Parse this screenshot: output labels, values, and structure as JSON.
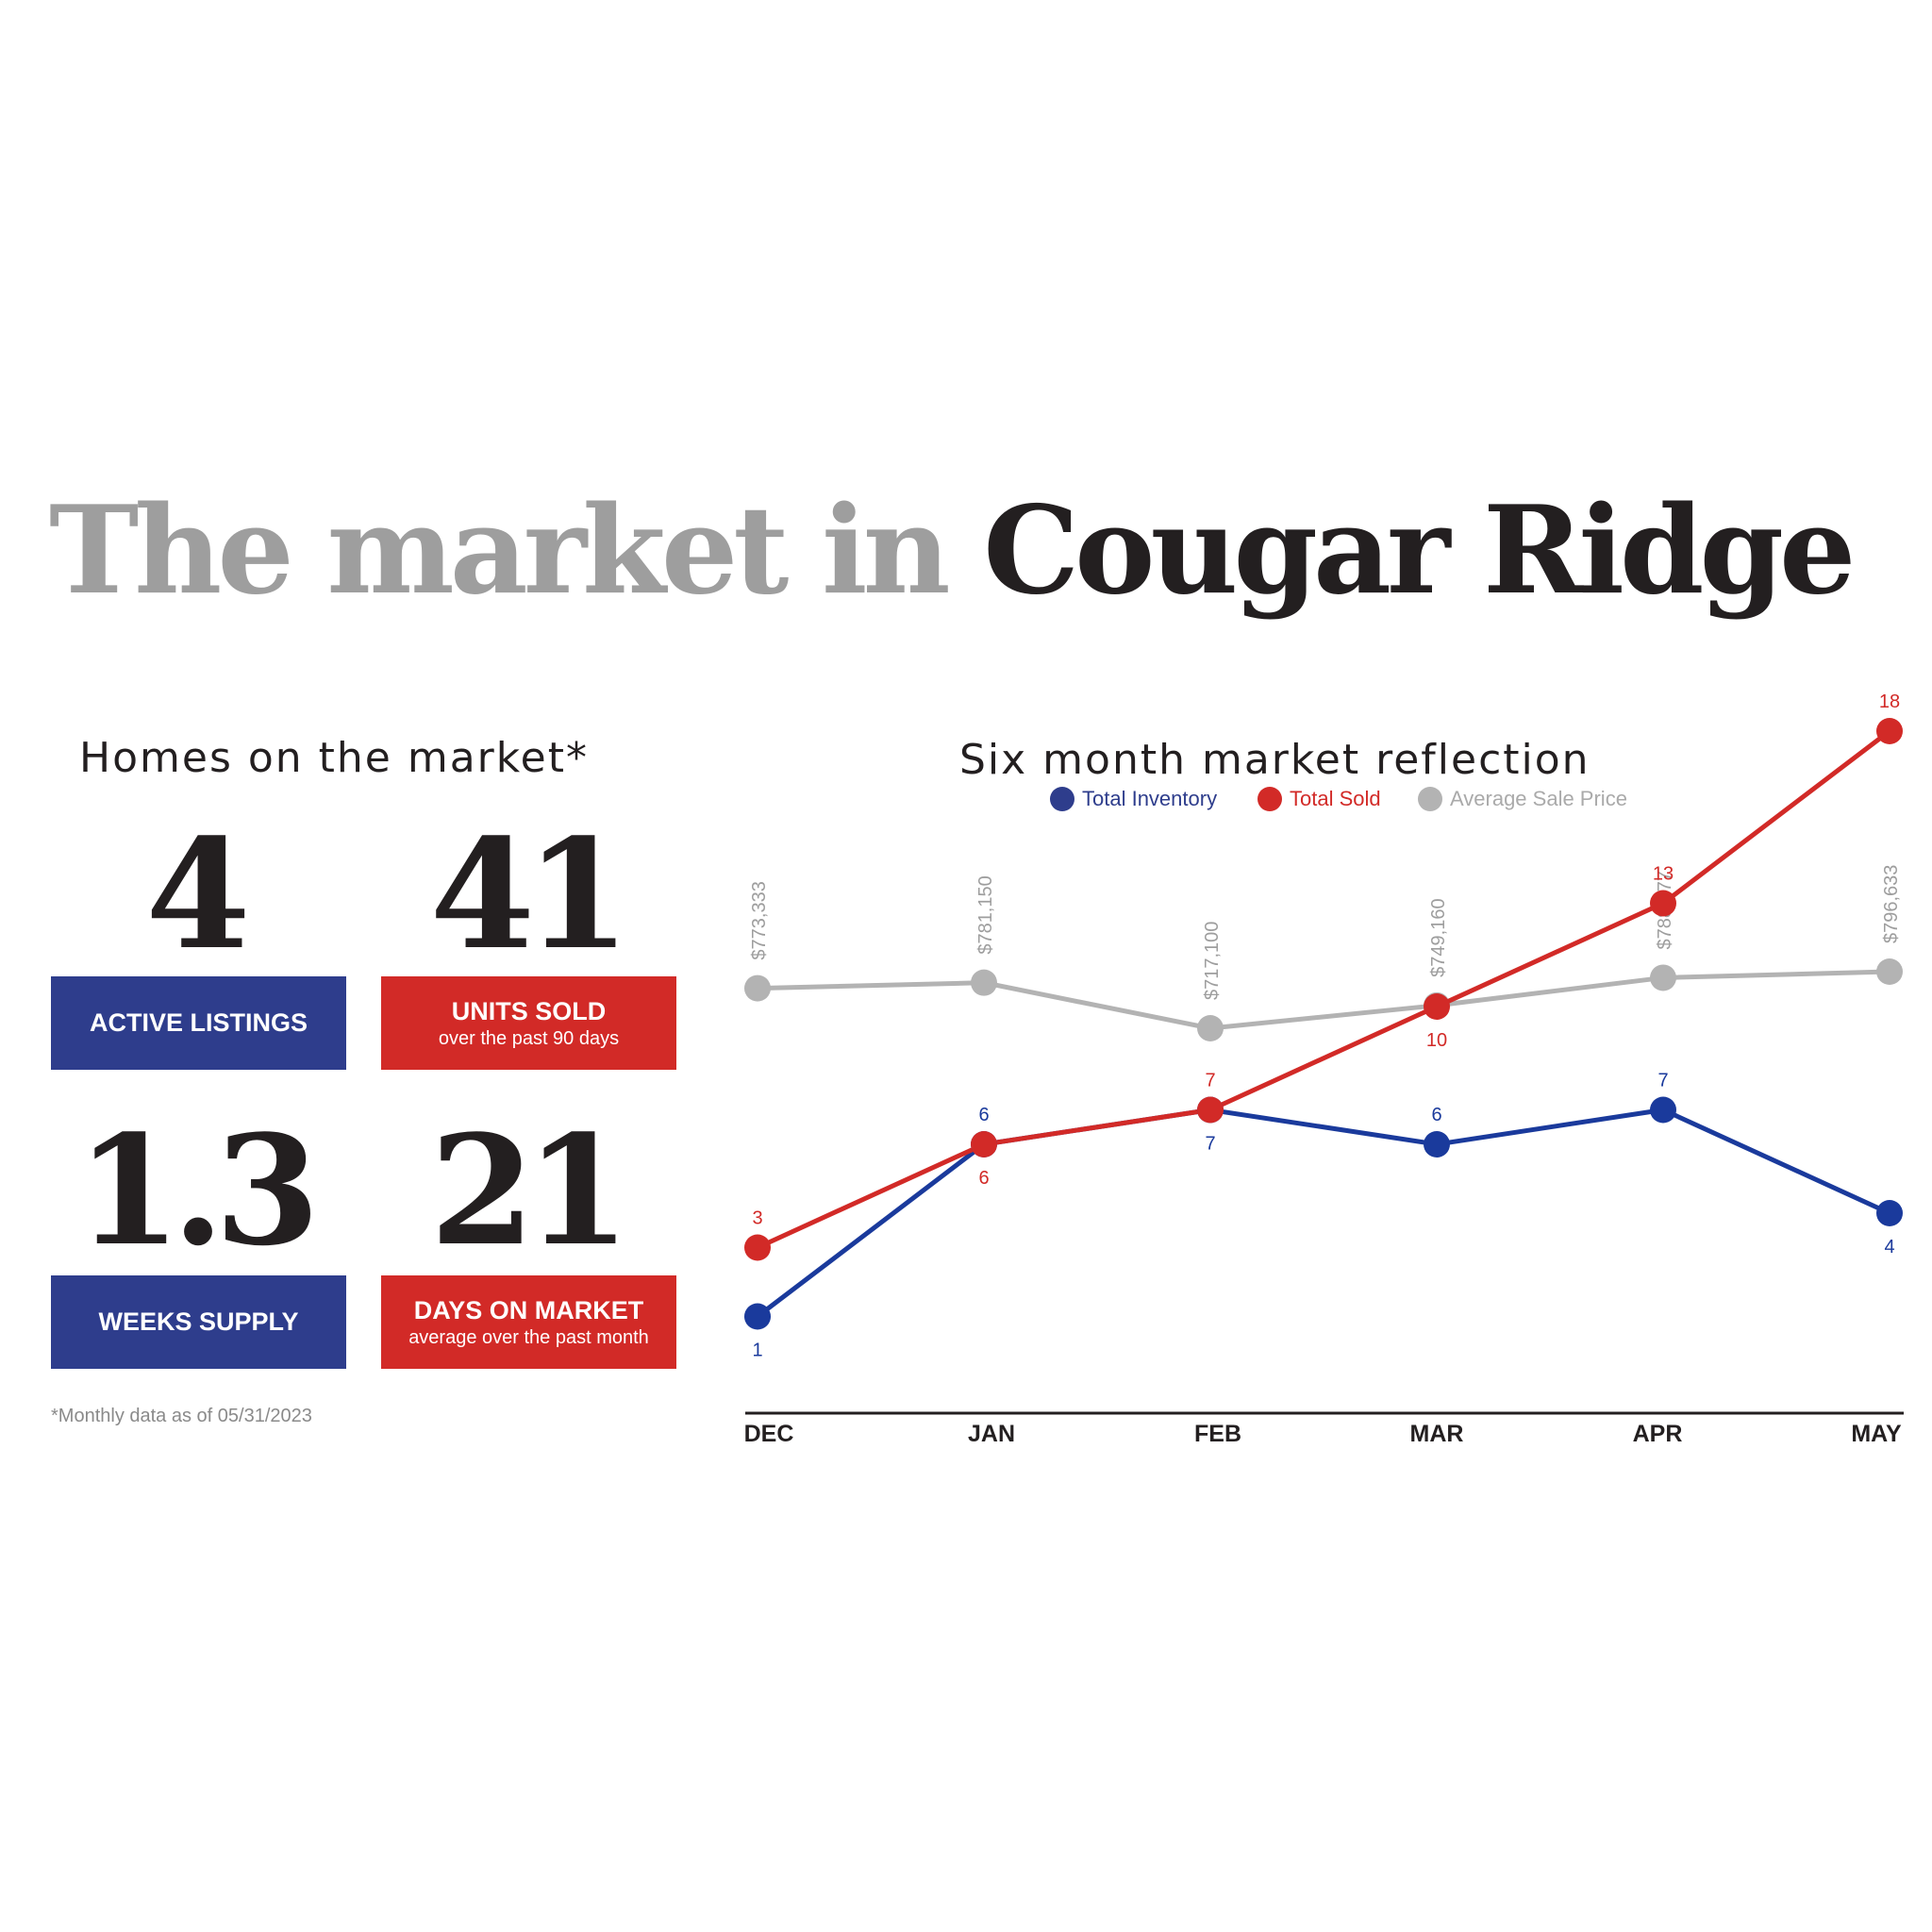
{
  "title": {
    "light": "The market in",
    "dark": "Cougar Ridge"
  },
  "homes": {
    "heading": "Homes on the market*",
    "stats": [
      {
        "value": "4",
        "label": "ACTIVE LISTINGS",
        "sub": ""
      },
      {
        "value": "41",
        "label": "UNITS SOLD",
        "sub": "over the past 90 days"
      },
      {
        "value": "1.3",
        "label": "WEEKS SUPPLY",
        "sub": ""
      },
      {
        "value": "21",
        "label": "DAYS ON MARKET",
        "sub": "average over the past month"
      }
    ],
    "footnote": "*Monthly data as of 05/31/2023"
  },
  "colors": {
    "inventory": "#1a3a9c",
    "sold": "#d22a27",
    "price": "#b3b3b3",
    "box_blue": "#2e3d8c",
    "box_red": "#d22a27"
  },
  "chart_data": {
    "type": "line",
    "title": "Six month market reflection",
    "xlabel": "",
    "ylabel": "",
    "grid": false,
    "legend": "top-center",
    "categories": [
      "DEC",
      "JAN",
      "FEB",
      "MAR",
      "APR",
      "MAY"
    ],
    "series": [
      {
        "name": "Total Inventory",
        "values": [
          1,
          6,
          7,
          6,
          7,
          4
        ],
        "labels": [
          "1",
          "6",
          "7",
          "6",
          "7",
          "4"
        ]
      },
      {
        "name": "Total Sold",
        "values": [
          3,
          6,
          7,
          10,
          13,
          18
        ],
        "labels": [
          "3",
          "6",
          "7",
          "10",
          "13",
          "18"
        ]
      },
      {
        "name": "Average Sale Price",
        "values": [
          773333,
          781150,
          717100,
          749160,
          788077,
          796633
        ],
        "labels": [
          "$773,333",
          "$781,150",
          "$717,100",
          "$749,160",
          "$788,077",
          "$796,633"
        ]
      }
    ]
  }
}
